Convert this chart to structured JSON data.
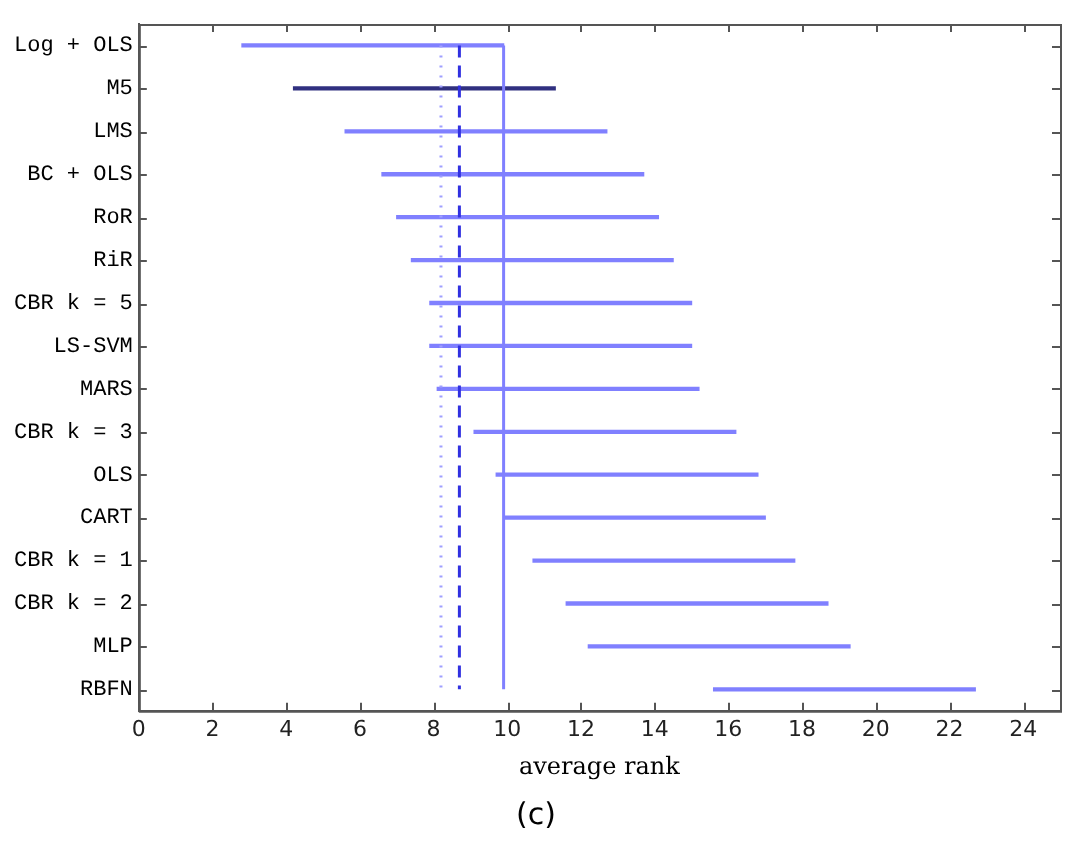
{
  "chart_data": {
    "type": "bar",
    "orientation": "horizontal",
    "xlabel": "average rank",
    "categories": [
      "Log + OLS",
      "M5",
      "LMS",
      "BC + OLS",
      "RoR",
      "RiR",
      "CBR k = 5",
      "LS-SVM",
      "MARS",
      "CBR k = 3",
      "OLS",
      "CART",
      "CBR k = 1",
      "CBR k = 2",
      "MLP",
      "RBFN"
    ],
    "base": [
      2.8,
      4.2,
      5.6,
      6.6,
      7.0,
      7.4,
      7.9,
      7.9,
      8.1,
      9.1,
      9.7,
      9.9,
      10.7,
      11.6,
      12.2,
      15.6
    ],
    "values": [
      7.1,
      7.1,
      7.1,
      7.1,
      7.1,
      7.1,
      7.1,
      7.1,
      7.1,
      7.1,
      7.1,
      7.1,
      7.1,
      7.1,
      7.1,
      7.1
    ],
    "colors": [
      "#8080ff",
      "#303080",
      "#8080ff",
      "#8080ff",
      "#8080ff",
      "#8080ff",
      "#8080ff",
      "#8080ff",
      "#8080ff",
      "#8080ff",
      "#8080ff",
      "#8080ff",
      "#8080ff",
      "#8080ff",
      "#8080ff",
      "#8080ff"
    ],
    "xlim": [
      0,
      25
    ],
    "xticks": [
      0,
      2,
      4,
      6,
      8,
      10,
      12,
      14,
      16,
      18,
      20,
      22,
      24
    ],
    "ref_lines": [
      {
        "axis": "x",
        "value": 9.9,
        "color": "#8080ff",
        "line_style": "solid"
      },
      {
        "axis": "x",
        "value": 8.7,
        "color": "#3030e0",
        "line_style": "dashed"
      },
      {
        "axis": "x",
        "value": 8.2,
        "color": "#a0a0ff",
        "line_style": "dotted"
      }
    ],
    "grid": false,
    "legend": false,
    "annotations": [
      "(c)"
    ]
  }
}
